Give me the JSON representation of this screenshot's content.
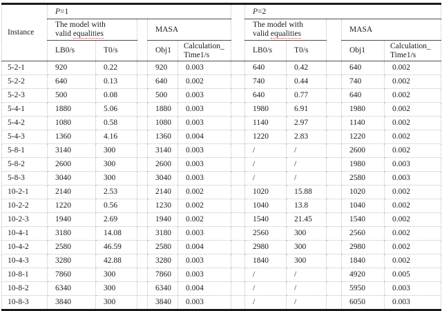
{
  "table": {
    "header": {
      "instance_label": "Instance",
      "p1": {
        "var": "P",
        "eq": "=1"
      },
      "p2": {
        "var": "P",
        "eq": "=2"
      },
      "model_group": {
        "line1": "The model with",
        "line2_word1": "valid",
        "line2_word2": "equalities"
      },
      "masa_label": "MASA",
      "subcols": {
        "lb0": "LB0/s",
        "t0": "T0/s",
        "obj1": "Obj1",
        "calc_line1": "Calculation_",
        "calc_line2": "Time1/s"
      }
    },
    "rows": [
      {
        "instance": "5-2-1",
        "p1": [
          "920",
          "0.22",
          "920",
          "0.003"
        ],
        "p2": [
          "640",
          "0.42",
          "640",
          "0.002"
        ]
      },
      {
        "instance": "5-2-2",
        "p1": [
          "640",
          "0.13",
          "640",
          "0.002"
        ],
        "p2": [
          "740",
          "0.44",
          "740",
          "0.002"
        ]
      },
      {
        "instance": "5-2-3",
        "p1": [
          "500",
          "0.08",
          "500",
          "0.003"
        ],
        "p2": [
          "640",
          "0.77",
          "640",
          "0.002"
        ]
      },
      {
        "instance": "5-4-1",
        "p1": [
          "1880",
          "5.06",
          "1880",
          "0.003"
        ],
        "p2": [
          "1980",
          "6.91",
          "1980",
          "0.002"
        ]
      },
      {
        "instance": "5-4-2",
        "p1": [
          "1080",
          "0.58",
          "1080",
          "0.003"
        ],
        "p2": [
          "1140",
          "2.97",
          "1140",
          "0.002"
        ]
      },
      {
        "instance": "5-4-3",
        "p1": [
          "1360",
          "4.16",
          "1360",
          "0.004"
        ],
        "p2": [
          "1220",
          "2.83",
          "1220",
          "0.002"
        ]
      },
      {
        "instance": "5-8-1",
        "p1": [
          "3140",
          "300",
          "3140",
          "0.003"
        ],
        "p2": [
          "/",
          "/",
          "2600",
          "0.002"
        ]
      },
      {
        "instance": "5-8-2",
        "p1": [
          "2600",
          "300",
          "2600",
          "0.003"
        ],
        "p2": [
          "/",
          "/",
          "1980",
          "0.003"
        ]
      },
      {
        "instance": "5-8-3",
        "p1": [
          "3040",
          "300",
          "3040",
          "0.003"
        ],
        "p2": [
          "/",
          "/",
          "2580",
          "0.003"
        ]
      },
      {
        "instance": "10-2-1",
        "p1": [
          "2140",
          "2.53",
          "2140",
          "0.002"
        ],
        "p2": [
          "1020",
          "15.88",
          "1020",
          "0.002"
        ]
      },
      {
        "instance": "10-2-2",
        "p1": [
          "1220",
          "0.56",
          "1230",
          "0.002"
        ],
        "p2": [
          "1040",
          "13.8",
          "1040",
          "0.002"
        ]
      },
      {
        "instance": "10-2-3",
        "p1": [
          "1940",
          "2.69",
          "1940",
          "0.002"
        ],
        "p2": [
          "1540",
          "21.45",
          "1540",
          "0.002"
        ]
      },
      {
        "instance": "10-4-1",
        "p1": [
          "3180",
          "14.08",
          "3180",
          "0.003"
        ],
        "p2": [
          "2560",
          "300",
          "2560",
          "0.002"
        ]
      },
      {
        "instance": "10-4-2",
        "p1": [
          "2580",
          "46.59",
          "2580",
          "0.004"
        ],
        "p2": [
          "2980",
          "300",
          "2980",
          "0.002"
        ]
      },
      {
        "instance": "10-4-3",
        "p1": [
          "3280",
          "42.88",
          "3280",
          "0.003"
        ],
        "p2": [
          "1840",
          "300",
          "1840",
          "0.002"
        ]
      },
      {
        "instance": "10-8-1",
        "p1": [
          "7860",
          "300",
          "7860",
          "0.003"
        ],
        "p2": [
          "/",
          "/",
          "4920",
          "0.005"
        ]
      },
      {
        "instance": "10-8-2",
        "p1": [
          "6340",
          "300",
          "6340",
          "0.004"
        ],
        "p2": [
          "/",
          "/",
          "5950",
          "0.003"
        ]
      },
      {
        "instance": "10-8-3",
        "p1": [
          "3840",
          "300",
          "3840",
          "0.003"
        ],
        "p2": [
          "/",
          "/",
          "6050",
          "0.003"
        ]
      }
    ]
  },
  "colors": {
    "thick_rule": "#191919",
    "header_rule": "#4d4d4d",
    "gridline": "#bfbfbf",
    "spellcheck_underline": "#cc4444"
  }
}
